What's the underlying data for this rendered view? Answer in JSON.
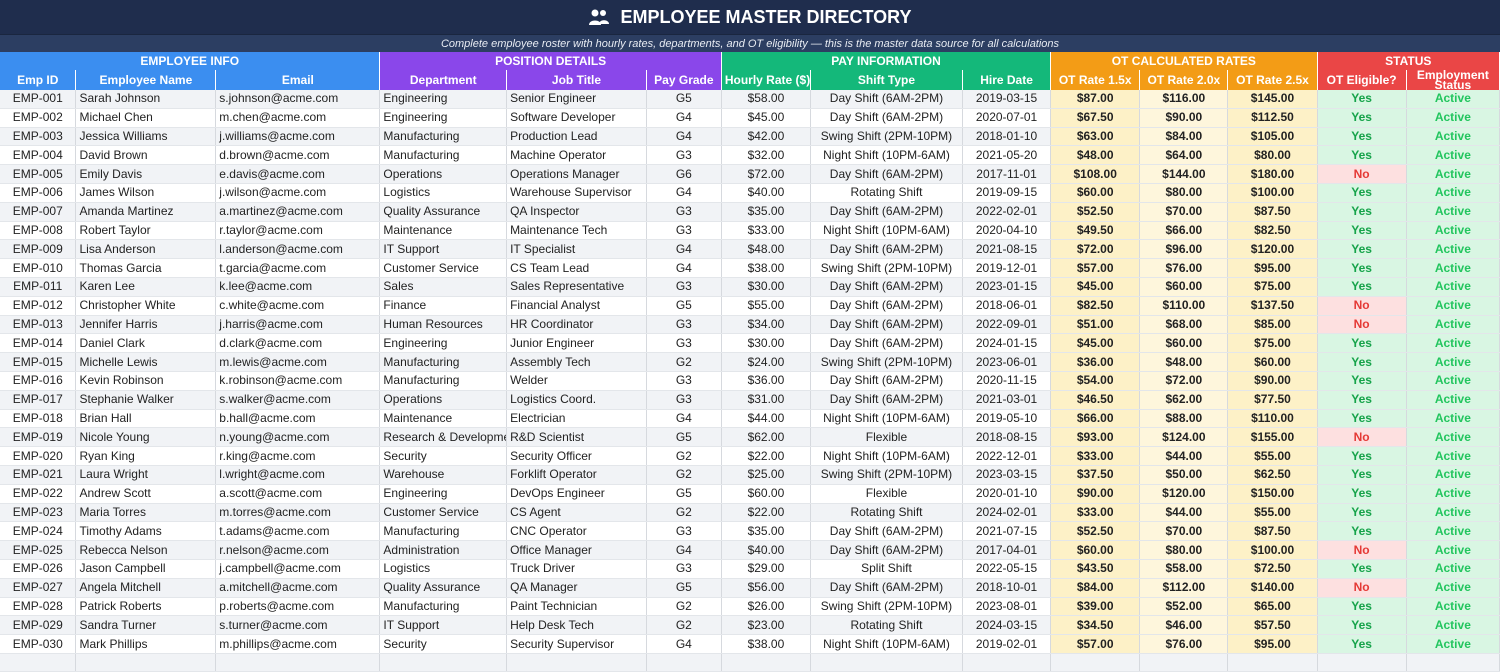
{
  "title": "EMPLOYEE MASTER DIRECTORY",
  "subtitle": "Complete employee roster with hourly rates, departments, and OT eligibility — this is the master data source for all calculations",
  "groups": {
    "info": "EMPLOYEE INFO",
    "position": "POSITION DETAILS",
    "pay": "PAY INFORMATION",
    "ot": "OT CALCULATED RATES",
    "status": "STATUS"
  },
  "columns": {
    "emp_id": "Emp ID",
    "name": "Employee Name",
    "email": "Email",
    "department": "Department",
    "job_title": "Job Title",
    "pay_grade": "Pay Grade",
    "hourly_rate": "Hourly Rate ($)",
    "shift_type": "Shift Type",
    "hire_date": "Hire Date",
    "ot15": "OT Rate 1.5x",
    "ot20": "OT Rate 2.0x",
    "ot25": "OT Rate 2.5x",
    "ot_eligible": "OT Eligible?",
    "employment_status": "Employment Status"
  },
  "rows": [
    [
      "EMP-001",
      "Sarah Johnson",
      "s.johnson@acme.com",
      "Engineering",
      "Senior Engineer",
      "G5",
      "$58.00",
      "Day Shift (6AM-2PM)",
      "2019-03-15",
      "$87.00",
      "$116.00",
      "$145.00",
      "Yes",
      "Active"
    ],
    [
      "EMP-002",
      "Michael Chen",
      "m.chen@acme.com",
      "Engineering",
      "Software Developer",
      "G4",
      "$45.00",
      "Day Shift (6AM-2PM)",
      "2020-07-01",
      "$67.50",
      "$90.00",
      "$112.50",
      "Yes",
      "Active"
    ],
    [
      "EMP-003",
      "Jessica Williams",
      "j.williams@acme.com",
      "Manufacturing",
      "Production Lead",
      "G4",
      "$42.00",
      "Swing Shift (2PM-10PM)",
      "2018-01-10",
      "$63.00",
      "$84.00",
      "$105.00",
      "Yes",
      "Active"
    ],
    [
      "EMP-004",
      "David Brown",
      "d.brown@acme.com",
      "Manufacturing",
      "Machine Operator",
      "G3",
      "$32.00",
      "Night Shift (10PM-6AM)",
      "2021-05-20",
      "$48.00",
      "$64.00",
      "$80.00",
      "Yes",
      "Active"
    ],
    [
      "EMP-005",
      "Emily Davis",
      "e.davis@acme.com",
      "Operations",
      "Operations Manager",
      "G6",
      "$72.00",
      "Day Shift (6AM-2PM)",
      "2017-11-01",
      "$108.00",
      "$144.00",
      "$180.00",
      "No",
      "Active"
    ],
    [
      "EMP-006",
      "James Wilson",
      "j.wilson@acme.com",
      "Logistics",
      "Warehouse Supervisor",
      "G4",
      "$40.00",
      "Rotating Shift",
      "2019-09-15",
      "$60.00",
      "$80.00",
      "$100.00",
      "Yes",
      "Active"
    ],
    [
      "EMP-007",
      "Amanda Martinez",
      "a.martinez@acme.com",
      "Quality Assurance",
      "QA Inspector",
      "G3",
      "$35.00",
      "Day Shift (6AM-2PM)",
      "2022-02-01",
      "$52.50",
      "$70.00",
      "$87.50",
      "Yes",
      "Active"
    ],
    [
      "EMP-008",
      "Robert Taylor",
      "r.taylor@acme.com",
      "Maintenance",
      "Maintenance Tech",
      "G3",
      "$33.00",
      "Night Shift (10PM-6AM)",
      "2020-04-10",
      "$49.50",
      "$66.00",
      "$82.50",
      "Yes",
      "Active"
    ],
    [
      "EMP-009",
      "Lisa Anderson",
      "l.anderson@acme.com",
      "IT Support",
      "IT Specialist",
      "G4",
      "$48.00",
      "Day Shift (6AM-2PM)",
      "2021-08-15",
      "$72.00",
      "$96.00",
      "$120.00",
      "Yes",
      "Active"
    ],
    [
      "EMP-010",
      "Thomas Garcia",
      "t.garcia@acme.com",
      "Customer Service",
      "CS Team Lead",
      "G4",
      "$38.00",
      "Swing Shift (2PM-10PM)",
      "2019-12-01",
      "$57.00",
      "$76.00",
      "$95.00",
      "Yes",
      "Active"
    ],
    [
      "EMP-011",
      "Karen Lee",
      "k.lee@acme.com",
      "Sales",
      "Sales Representative",
      "G3",
      "$30.00",
      "Day Shift (6AM-2PM)",
      "2023-01-15",
      "$45.00",
      "$60.00",
      "$75.00",
      "Yes",
      "Active"
    ],
    [
      "EMP-012",
      "Christopher White",
      "c.white@acme.com",
      "Finance",
      "Financial Analyst",
      "G5",
      "$55.00",
      "Day Shift (6AM-2PM)",
      "2018-06-01",
      "$82.50",
      "$110.00",
      "$137.50",
      "No",
      "Active"
    ],
    [
      "EMP-013",
      "Jennifer Harris",
      "j.harris@acme.com",
      "Human Resources",
      "HR Coordinator",
      "G3",
      "$34.00",
      "Day Shift (6AM-2PM)",
      "2022-09-01",
      "$51.00",
      "$68.00",
      "$85.00",
      "No",
      "Active"
    ],
    [
      "EMP-014",
      "Daniel Clark",
      "d.clark@acme.com",
      "Engineering",
      "Junior Engineer",
      "G3",
      "$30.00",
      "Day Shift (6AM-2PM)",
      "2024-01-15",
      "$45.00",
      "$60.00",
      "$75.00",
      "Yes",
      "Active"
    ],
    [
      "EMP-015",
      "Michelle Lewis",
      "m.lewis@acme.com",
      "Manufacturing",
      "Assembly Tech",
      "G2",
      "$24.00",
      "Swing Shift (2PM-10PM)",
      "2023-06-01",
      "$36.00",
      "$48.00",
      "$60.00",
      "Yes",
      "Active"
    ],
    [
      "EMP-016",
      "Kevin Robinson",
      "k.robinson@acme.com",
      "Manufacturing",
      "Welder",
      "G3",
      "$36.00",
      "Day Shift (6AM-2PM)",
      "2020-11-15",
      "$54.00",
      "$72.00",
      "$90.00",
      "Yes",
      "Active"
    ],
    [
      "EMP-017",
      "Stephanie Walker",
      "s.walker@acme.com",
      "Operations",
      "Logistics Coord.",
      "G3",
      "$31.00",
      "Day Shift (6AM-2PM)",
      "2021-03-01",
      "$46.50",
      "$62.00",
      "$77.50",
      "Yes",
      "Active"
    ],
    [
      "EMP-018",
      "Brian Hall",
      "b.hall@acme.com",
      "Maintenance",
      "Electrician",
      "G4",
      "$44.00",
      "Night Shift (10PM-6AM)",
      "2019-05-10",
      "$66.00",
      "$88.00",
      "$110.00",
      "Yes",
      "Active"
    ],
    [
      "EMP-019",
      "Nicole Young",
      "n.young@acme.com",
      "Research & Development",
      "R&D Scientist",
      "G5",
      "$62.00",
      "Flexible",
      "2018-08-15",
      "$93.00",
      "$124.00",
      "$155.00",
      "No",
      "Active"
    ],
    [
      "EMP-020",
      "Ryan King",
      "r.king@acme.com",
      "Security",
      "Security Officer",
      "G2",
      "$22.00",
      "Night Shift (10PM-6AM)",
      "2022-12-01",
      "$33.00",
      "$44.00",
      "$55.00",
      "Yes",
      "Active"
    ],
    [
      "EMP-021",
      "Laura Wright",
      "l.wright@acme.com",
      "Warehouse",
      "Forklift Operator",
      "G2",
      "$25.00",
      "Swing Shift (2PM-10PM)",
      "2023-03-15",
      "$37.50",
      "$50.00",
      "$62.50",
      "Yes",
      "Active"
    ],
    [
      "EMP-022",
      "Andrew Scott",
      "a.scott@acme.com",
      "Engineering",
      "DevOps Engineer",
      "G5",
      "$60.00",
      "Flexible",
      "2020-01-10",
      "$90.00",
      "$120.00",
      "$150.00",
      "Yes",
      "Active"
    ],
    [
      "EMP-023",
      "Maria Torres",
      "m.torres@acme.com",
      "Customer Service",
      "CS Agent",
      "G2",
      "$22.00",
      "Rotating Shift",
      "2024-02-01",
      "$33.00",
      "$44.00",
      "$55.00",
      "Yes",
      "Active"
    ],
    [
      "EMP-024",
      "Timothy Adams",
      "t.adams@acme.com",
      "Manufacturing",
      "CNC Operator",
      "G3",
      "$35.00",
      "Day Shift (6AM-2PM)",
      "2021-07-15",
      "$52.50",
      "$70.00",
      "$87.50",
      "Yes",
      "Active"
    ],
    [
      "EMP-025",
      "Rebecca Nelson",
      "r.nelson@acme.com",
      "Administration",
      "Office Manager",
      "G4",
      "$40.00",
      "Day Shift (6AM-2PM)",
      "2017-04-01",
      "$60.00",
      "$80.00",
      "$100.00",
      "No",
      "Active"
    ],
    [
      "EMP-026",
      "Jason Campbell",
      "j.campbell@acme.com",
      "Logistics",
      "Truck Driver",
      "G3",
      "$29.00",
      "Split Shift",
      "2022-05-15",
      "$43.50",
      "$58.00",
      "$72.50",
      "Yes",
      "Active"
    ],
    [
      "EMP-027",
      "Angela Mitchell",
      "a.mitchell@acme.com",
      "Quality Assurance",
      "QA Manager",
      "G5",
      "$56.00",
      "Day Shift (6AM-2PM)",
      "2018-10-01",
      "$84.00",
      "$112.00",
      "$140.00",
      "No",
      "Active"
    ],
    [
      "EMP-028",
      "Patrick Roberts",
      "p.roberts@acme.com",
      "Manufacturing",
      "Paint Technician",
      "G2",
      "$26.00",
      "Swing Shift (2PM-10PM)",
      "2023-08-01",
      "$39.00",
      "$52.00",
      "$65.00",
      "Yes",
      "Active"
    ],
    [
      "EMP-029",
      "Sandra Turner",
      "s.turner@acme.com",
      "IT Support",
      "Help Desk Tech",
      "G2",
      "$23.00",
      "Rotating Shift",
      "2024-03-15",
      "$34.50",
      "$46.00",
      "$57.50",
      "Yes",
      "Active"
    ],
    [
      "EMP-030",
      "Mark Phillips",
      "m.phillips@acme.com",
      "Security",
      "Security Supervisor",
      "G4",
      "$38.00",
      "Night Shift (10PM-6AM)",
      "2019-02-01",
      "$57.00",
      "$76.00",
      "$95.00",
      "Yes",
      "Active"
    ]
  ]
}
